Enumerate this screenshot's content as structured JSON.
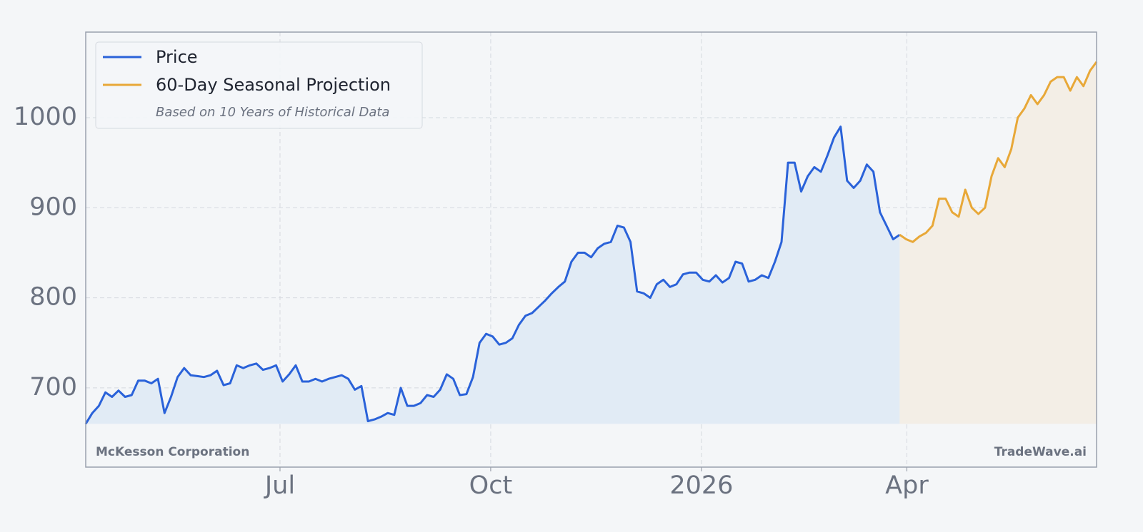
{
  "chart_data": {
    "type": "line",
    "company": "McKesson Corporation",
    "watermark": "TradeWave.ai",
    "legend_note": "Based on 10 Years of Historical Data",
    "xlim": [
      0,
      154
    ],
    "xticks": [
      {
        "value": 29.6,
        "label": "Jul"
      },
      {
        "value": 61.7,
        "label": "Oct"
      },
      {
        "value": 93.8,
        "label": "2026"
      },
      {
        "value": 125.1,
        "label": "Apr"
      }
    ],
    "ylim": [
      612,
      1095
    ],
    "yticks": [
      700,
      800,
      900,
      1000
    ],
    "grid": true,
    "legend_position": "upper left",
    "series": [
      {
        "name": "Price",
        "color": "#2a62d9",
        "fill": "#e1ebf5",
        "values": [
          660,
          672,
          680,
          695,
          690,
          697,
          690,
          692,
          708,
          708,
          705,
          710,
          672,
          690,
          712,
          722,
          714,
          713,
          712,
          714,
          719,
          703,
          705,
          725,
          722,
          725,
          727,
          720,
          722,
          725,
          707,
          715,
          725,
          707,
          707,
          710,
          707,
          710,
          712,
          714,
          710,
          698,
          702,
          663,
          665,
          668,
          672,
          670,
          700,
          680,
          680,
          683,
          692,
          690,
          698,
          715,
          710,
          692,
          693,
          712,
          750,
          760,
          757,
          748,
          750,
          755,
          770,
          780,
          783,
          790,
          797,
          805,
          812,
          818,
          840,
          850,
          850,
          845,
          855,
          860,
          862,
          880,
          878,
          862,
          807,
          805,
          800,
          815,
          820,
          812,
          815,
          826,
          828,
          828,
          820,
          818,
          825,
          817,
          822,
          840,
          838,
          818,
          820,
          825,
          822,
          840,
          862,
          950,
          950,
          918,
          935,
          945,
          940,
          958,
          978,
          990,
          930,
          922,
          930,
          948,
          940,
          895,
          880,
          865,
          870,
          null,
          null,
          null,
          null,
          null,
          null,
          null,
          null,
          null,
          null,
          null,
          null,
          null,
          null,
          null,
          null,
          null,
          null,
          null,
          null,
          null,
          null,
          null,
          null,
          null,
          null,
          null,
          null,
          null,
          null
        ]
      },
      {
        "name": "60-Day Seasonal Projection",
        "color": "#e8a838",
        "fill": "#f3eee6",
        "values": [
          null,
          null,
          null,
          null,
          null,
          null,
          null,
          null,
          null,
          null,
          null,
          null,
          null,
          null,
          null,
          null,
          null,
          null,
          null,
          null,
          null,
          null,
          null,
          null,
          null,
          null,
          null,
          null,
          null,
          null,
          null,
          null,
          null,
          null,
          null,
          null,
          null,
          null,
          null,
          null,
          null,
          null,
          null,
          null,
          null,
          null,
          null,
          null,
          null,
          null,
          null,
          null,
          null,
          null,
          null,
          null,
          null,
          null,
          null,
          null,
          null,
          null,
          null,
          null,
          null,
          null,
          null,
          null,
          null,
          null,
          null,
          null,
          null,
          null,
          null,
          null,
          null,
          null,
          null,
          null,
          null,
          null,
          null,
          null,
          null,
          null,
          null,
          null,
          null,
          null,
          null,
          null,
          null,
          null,
          null,
          null,
          null,
          null,
          null,
          null,
          null,
          null,
          null,
          null,
          null,
          null,
          null,
          null,
          null,
          null,
          null,
          null,
          null,
          null,
          null,
          null,
          null,
          null,
          null,
          null,
          null,
          null,
          null,
          null,
          870,
          865,
          862,
          868,
          872,
          880,
          910,
          910,
          895,
          890,
          920,
          900,
          893,
          900,
          935,
          955,
          945,
          965,
          1000,
          1010,
          1025,
          1015,
          1025,
          1040,
          1045,
          1045,
          1030,
          1045,
          1035,
          1052,
          1062
        ]
      }
    ]
  }
}
